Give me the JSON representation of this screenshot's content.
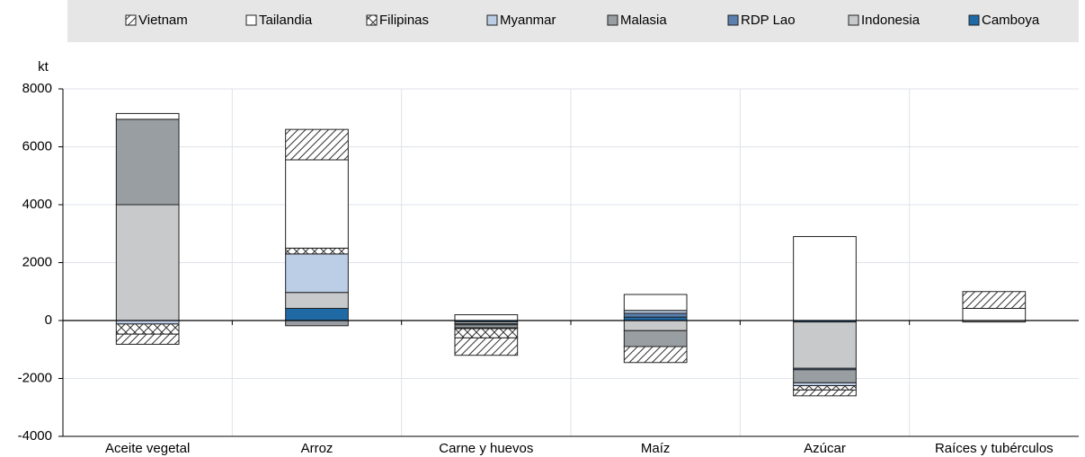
{
  "chart_data": {
    "type": "bar",
    "stacked": true,
    "y_label": "kt",
    "categories": [
      "Aceite vegetal",
      "Arroz",
      "Carne y huevos",
      "Maíz",
      "Azúcar",
      "Raíces y tubérculos"
    ],
    "series": [
      {
        "name": "Vietnam",
        "color": "#ffffff",
        "pattern": "hatch",
        "values": [
          -350,
          1050,
          -600,
          -550,
          -200,
          580
        ]
      },
      {
        "name": "Tailandia",
        "color": "#ffffff",
        "values": [
          200,
          3050,
          200,
          550,
          2900,
          420
        ]
      },
      {
        "name": "Filipinas",
        "color": "#ffffff",
        "pattern": "crosshatch",
        "values": [
          -350,
          200,
          -320,
          null,
          -150,
          null
        ]
      },
      {
        "name": "Myanmar",
        "color": "#bccde6",
        "values": [
          -120,
          1330,
          -30,
          100,
          -100,
          null
        ]
      },
      {
        "name": "Malasia",
        "color": "#999ea2",
        "values": [
          2950,
          -180,
          -100,
          -550,
          -450,
          null
        ]
      },
      {
        "name": "RDP Lao",
        "color": "#5b7fae",
        "values": [
          null,
          null,
          -40,
          130,
          -50,
          null
        ]
      },
      {
        "name": "Indonesia",
        "color": "#c8c9ca",
        "values": [
          4000,
          550,
          -60,
          -350,
          -1600,
          -50
        ]
      },
      {
        "name": "Camboya",
        "color": "#1f6aa5",
        "values": [
          null,
          420,
          -50,
          120,
          -50,
          null
        ]
      }
    ],
    "ylim": [
      -4000,
      8000
    ],
    "yticks": [
      -4000,
      -2000,
      0,
      2000,
      4000,
      6000,
      8000
    ],
    "grid": true,
    "legend": "top"
  }
}
